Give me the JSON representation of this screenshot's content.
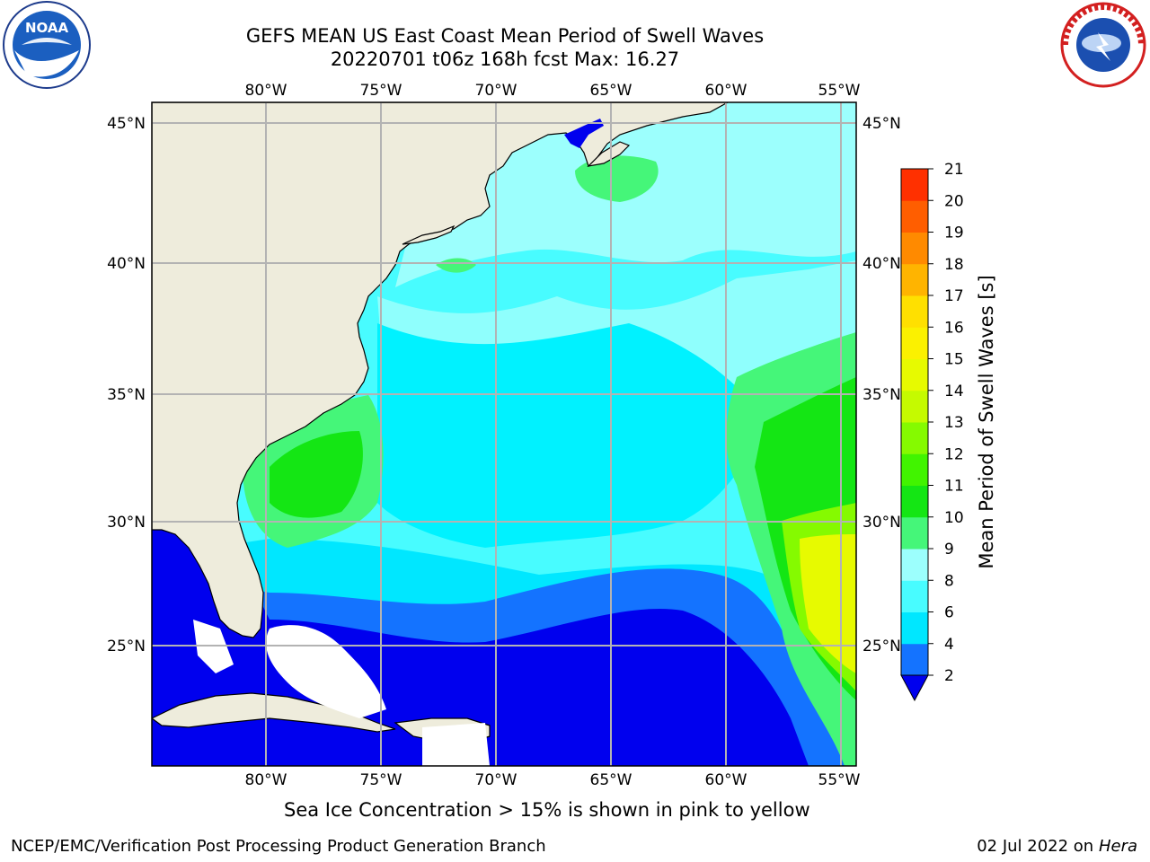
{
  "title": {
    "line1": "GEFS MEAN US East Coast Mean Period of Swell Waves",
    "line2": "20220701 t06z 168h fcst   Max: 16.27"
  },
  "logos": {
    "left": "noaa-logo",
    "right": "national-weather-service-logo"
  },
  "map": {
    "lon_labels": [
      "80°W",
      "75°W",
      "70°W",
      "65°W",
      "60°W",
      "55°W"
    ],
    "lat_labels": [
      "45°N",
      "40°N",
      "35°N",
      "30°N",
      "25°N"
    ],
    "colors": {
      "land": "#eeecdc",
      "grid": "#b3b3b3"
    }
  },
  "colorbar": {
    "label": "Mean Period of Swell Waves [s]",
    "ticks": [
      "2",
      "4",
      "6",
      "8",
      "9",
      "10",
      "11",
      "12",
      "13",
      "14",
      "15",
      "16",
      "17",
      "18",
      "19",
      "20",
      "21"
    ],
    "colors": [
      "#1473ff",
      "#00e7ff",
      "#48fcff",
      "#9cfffd",
      "#45f679",
      "#14e614",
      "#41f400",
      "#85fa00",
      "#c5fa00",
      "#e7fa00",
      "#fbf100",
      "#ffe000",
      "#ffb400",
      "#ff8a00",
      "#ff5e00",
      "#ff3000",
      "#ff0000"
    ],
    "under_color": "#0000ee"
  },
  "captions": {
    "ice_note": "Sea Ice Concentration > 15% is shown in pink to yellow",
    "footer_left": "NCEP/EMC/Verification Post Processing Product Generation Branch",
    "footer_date": "02 Jul 2022 on ",
    "footer_machine": "Hera"
  }
}
